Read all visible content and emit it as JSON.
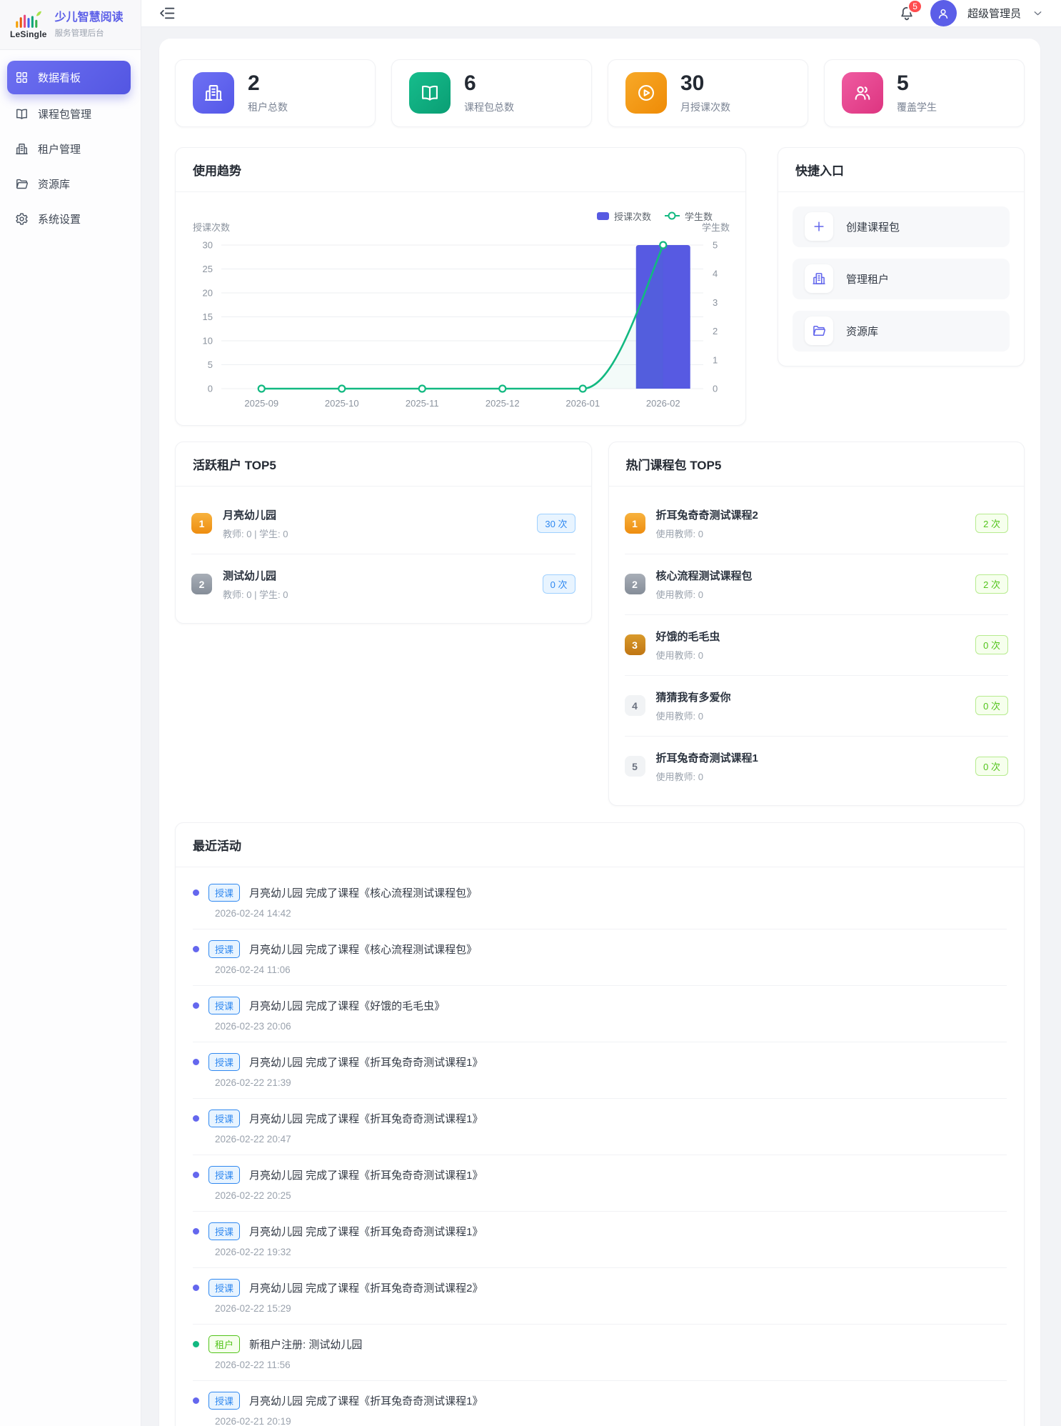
{
  "brand": {
    "logo_text": "LeSingle",
    "title": "少儿智慧阅读",
    "subtitle": "服务管理后台"
  },
  "header": {
    "notification_count": "5",
    "user_name": "超级管理员"
  },
  "sidebar": {
    "items": [
      {
        "key": "dashboard",
        "label": "数据看板",
        "icon": "dashboard-icon",
        "active": true
      },
      {
        "key": "courses",
        "label": "课程包管理",
        "icon": "book-icon",
        "active": false
      },
      {
        "key": "tenants",
        "label": "租户管理",
        "icon": "building-icon",
        "active": false
      },
      {
        "key": "library",
        "label": "资源库",
        "icon": "folder-icon",
        "active": false
      },
      {
        "key": "settings",
        "label": "系统设置",
        "icon": "gear-icon",
        "active": false
      }
    ]
  },
  "stats": [
    {
      "key": "tenants-total",
      "value": "2",
      "label": "租户总数",
      "icon": "building-icon",
      "gradient": [
        "#6e71f3",
        "#5457e8"
      ]
    },
    {
      "key": "courses-total",
      "value": "6",
      "label": "课程包总数",
      "icon": "book-icon",
      "gradient": [
        "#16bd8c",
        "#0a9e74"
      ]
    },
    {
      "key": "monthly-sessions",
      "value": "30",
      "label": "月授课次数",
      "icon": "play-circle-icon",
      "gradient": [
        "#f7a928",
        "#ef8b06"
      ]
    },
    {
      "key": "students-covered",
      "value": "5",
      "label": "覆盖学生",
      "icon": "students-icon",
      "gradient": [
        "#ef5ba1",
        "#dd3480"
      ]
    }
  ],
  "trend": {
    "title": "使用趋势"
  },
  "chart_data": {
    "type": "bar+line",
    "title": "使用趋势",
    "categories": [
      "2025-09",
      "2025-10",
      "2025-11",
      "2025-12",
      "2026-01",
      "2026-02"
    ],
    "series": [
      {
        "name": "授课次数",
        "type": "bar",
        "axis": "left",
        "color": "#575ae2",
        "values": [
          0,
          0,
          0,
          0,
          0,
          30
        ]
      },
      {
        "name": "学生数",
        "type": "line",
        "axis": "right",
        "color": "#12b981",
        "values": [
          0,
          0,
          0,
          0,
          0,
          5
        ]
      }
    ],
    "left_axis": {
      "name": "授课次数",
      "min": 0,
      "max": 30,
      "ticks": [
        0,
        5,
        10,
        15,
        20,
        25,
        30
      ]
    },
    "right_axis": {
      "name": "学生数",
      "min": 0,
      "max": 5,
      "ticks": [
        0,
        1,
        2,
        3,
        4,
        5
      ]
    },
    "legend_position": "top-right",
    "grid": true
  },
  "quick": {
    "title": "快捷入口",
    "items": [
      {
        "key": "create-course",
        "label": "创建课程包",
        "icon": "plus-icon"
      },
      {
        "key": "manage-tenants",
        "label": "管理租户",
        "icon": "building-icon"
      },
      {
        "key": "library",
        "label": "资源库",
        "icon": "folder-icon"
      }
    ]
  },
  "tenants": {
    "title": "活跃租户 TOP5",
    "items": [
      {
        "rank": "1",
        "name": "月亮幼儿园",
        "meta": "教师: 0 | 学生: 0",
        "count": "30 次"
      },
      {
        "rank": "2",
        "name": "测试幼儿园",
        "meta": "教师: 0 | 学生: 0",
        "count": "0 次"
      }
    ]
  },
  "courses": {
    "title": "热门课程包 TOP5",
    "items": [
      {
        "rank": "1",
        "name": "折耳兔奇奇测试课程2",
        "meta": "使用教师: 0",
        "count": "2 次"
      },
      {
        "rank": "2",
        "name": "核心流程测试课程包",
        "meta": "使用教师: 0",
        "count": "2 次"
      },
      {
        "rank": "3",
        "name": "好饿的毛毛虫",
        "meta": "使用教师: 0",
        "count": "0 次"
      },
      {
        "rank": "4",
        "name": "猜猜我有多爱你",
        "meta": "使用教师: 0",
        "count": "0 次"
      },
      {
        "rank": "5",
        "name": "折耳兔奇奇测试课程1",
        "meta": "使用教师: 0",
        "count": "0 次"
      }
    ]
  },
  "activities": {
    "title": "最近活动",
    "items": [
      {
        "tag": "授课",
        "kind": "teach",
        "text": "月亮幼儿园 完成了课程《核心流程测试课程包》",
        "time": "2026-02-24 14:42"
      },
      {
        "tag": "授课",
        "kind": "teach",
        "text": "月亮幼儿园 完成了课程《核心流程测试课程包》",
        "time": "2026-02-24 11:06"
      },
      {
        "tag": "授课",
        "kind": "teach",
        "text": "月亮幼儿园 完成了课程《好饿的毛毛虫》",
        "time": "2026-02-23 20:06"
      },
      {
        "tag": "授课",
        "kind": "teach",
        "text": "月亮幼儿园 完成了课程《折耳兔奇奇测试课程1》",
        "time": "2026-02-22 21:39"
      },
      {
        "tag": "授课",
        "kind": "teach",
        "text": "月亮幼儿园 完成了课程《折耳兔奇奇测试课程1》",
        "time": "2026-02-22 20:47"
      },
      {
        "tag": "授课",
        "kind": "teach",
        "text": "月亮幼儿园 完成了课程《折耳兔奇奇测试课程1》",
        "time": "2026-02-22 20:25"
      },
      {
        "tag": "授课",
        "kind": "teach",
        "text": "月亮幼儿园 完成了课程《折耳兔奇奇测试课程1》",
        "time": "2026-02-22 19:32"
      },
      {
        "tag": "授课",
        "kind": "teach",
        "text": "月亮幼儿园 完成了课程《折耳兔奇奇测试课程2》",
        "time": "2026-02-22 15:29"
      },
      {
        "tag": "租户",
        "kind": "tenant",
        "text": "新租户注册: 测试幼儿园",
        "time": "2026-02-22 11:56"
      },
      {
        "tag": "授课",
        "kind": "teach",
        "text": "月亮幼儿园 完成了课程《折耳兔奇奇测试课程1》",
        "time": "2026-02-21 20:19"
      }
    ]
  },
  "status_colors": {
    "primary": "#5558e0",
    "bar": "#575ae2",
    "line": "#12b981",
    "teach_tag": "#2f88f0",
    "tenant_tag": "#52c41a",
    "notification_badge": "#ff4d4f",
    "rank_gold": "#f0970f",
    "rank_silver": "#9aa0a8",
    "rank_bronze": "#c07613"
  }
}
